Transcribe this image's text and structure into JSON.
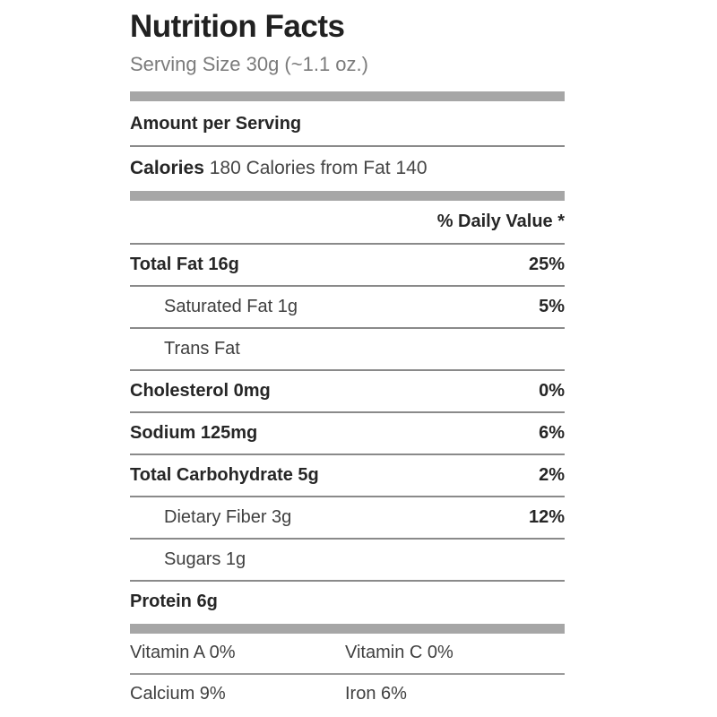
{
  "label": {
    "title": "Nutrition Facts",
    "serving_size": "Serving Size 30g (~1.1 oz.)",
    "amount_per_serving": "Amount per Serving",
    "calories": {
      "label": "Calories",
      "value_text": "180 Calories from Fat 140"
    },
    "daily_value_header": "% Daily Value *",
    "rows": [
      {
        "name": "Total Fat 16g",
        "pct": "25%"
      },
      {
        "name": "Saturated Fat 1g",
        "pct": "5%"
      },
      {
        "name": "Trans Fat",
        "pct": ""
      },
      {
        "name": "Cholesterol 0mg",
        "pct": "0%"
      },
      {
        "name": "Sodium 125mg",
        "pct": "6%"
      },
      {
        "name": "Total Carbohydrate 5g",
        "pct": "2%"
      },
      {
        "name": "Dietary Fiber 3g",
        "pct": "12%"
      },
      {
        "name": "Sugars 1g",
        "pct": ""
      },
      {
        "name": "Protein 6g",
        "pct": ""
      }
    ],
    "micronutrients": {
      "vitamin_a": "Vitamin A 0%",
      "vitamin_c": "Vitamin C 0%",
      "calcium": "Calcium 9%",
      "iron": "Iron 6%"
    },
    "colors": {
      "thick_bar": "#a6a6a6",
      "thin_rule": "#8a8a8a",
      "title_text": "#212121",
      "muted_text": "#7b7b7b",
      "body_text": "#3f3f3f"
    }
  }
}
